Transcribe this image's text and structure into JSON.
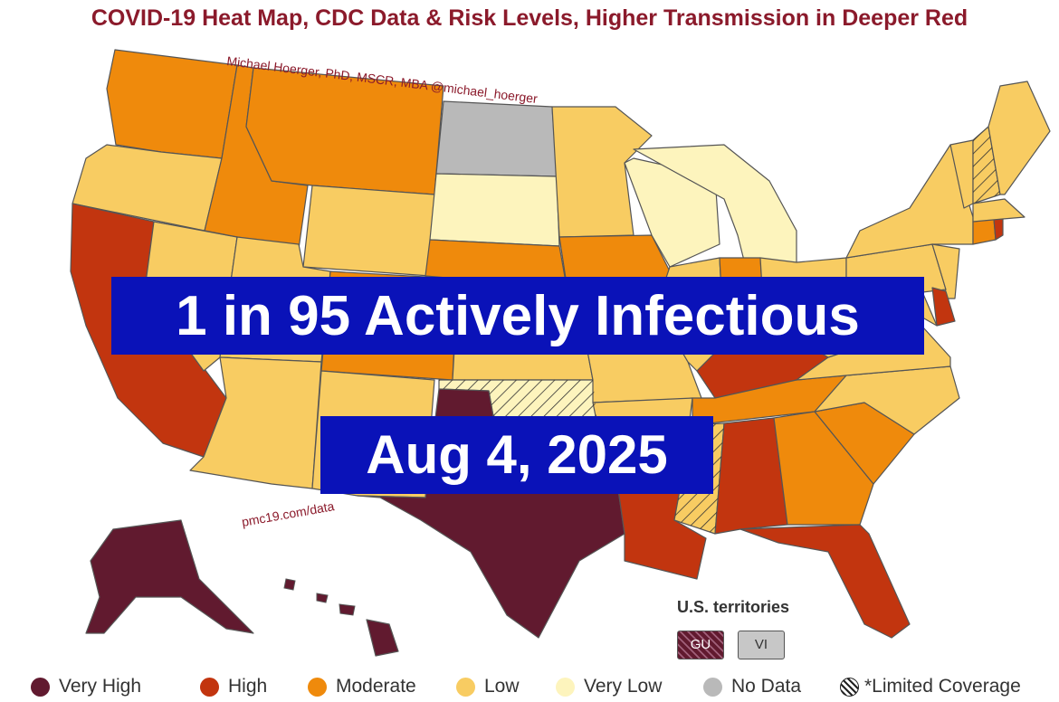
{
  "title": "COVID-19 Heat Map, CDC Data & Risk Levels, Higher Transmission in Deeper Red",
  "attribution": "Michael Hoerger, PhD, MSCR, MBA  @michael_hoerger",
  "source_url": "pmc19.com/data",
  "headline": "1 in 95 Actively Infectious",
  "date": "Aug 4, 2025",
  "colors": {
    "very_high": "#611a2f",
    "high": "#c2350f",
    "moderate": "#ef8a0c",
    "low": "#f8cc62",
    "very_low": "#fdf4bd",
    "no_data": "#b9b9b9",
    "title": "#8b1a2b",
    "banner": "#0a12b8"
  },
  "territories": {
    "title": "U.S. territories",
    "items": [
      {
        "code": "GU",
        "level": "very_high",
        "limited_coverage": true
      },
      {
        "code": "VI",
        "level": "no_data"
      }
    ]
  },
  "legend": [
    {
      "label": "Very High",
      "level": "very_high"
    },
    {
      "label": "High",
      "level": "high"
    },
    {
      "label": "Moderate",
      "level": "moderate"
    },
    {
      "label": "Low",
      "level": "low"
    },
    {
      "label": "Very Low",
      "level": "very_low"
    },
    {
      "label": "No Data",
      "level": "no_data"
    },
    {
      "label": "*Limited Coverage",
      "level": "hatched"
    }
  ],
  "states": [
    {
      "id": "WA",
      "level": "moderate"
    },
    {
      "id": "OR",
      "level": "low"
    },
    {
      "id": "CA",
      "level": "high"
    },
    {
      "id": "NV",
      "level": "low"
    },
    {
      "id": "ID",
      "level": "moderate"
    },
    {
      "id": "MT",
      "level": "moderate"
    },
    {
      "id": "WY",
      "level": "low"
    },
    {
      "id": "UT",
      "level": "low"
    },
    {
      "id": "AZ",
      "level": "low"
    },
    {
      "id": "CO",
      "level": "moderate"
    },
    {
      "id": "NM",
      "level": "low"
    },
    {
      "id": "ND",
      "level": "no_data"
    },
    {
      "id": "SD",
      "level": "very_low"
    },
    {
      "id": "NE",
      "level": "moderate"
    },
    {
      "id": "KS",
      "level": "low"
    },
    {
      "id": "OK",
      "level": "very_low",
      "limited_coverage": true
    },
    {
      "id": "TX",
      "level": "very_high"
    },
    {
      "id": "MN",
      "level": "low"
    },
    {
      "id": "IA",
      "level": "moderate"
    },
    {
      "id": "MO",
      "level": "low"
    },
    {
      "id": "AR",
      "level": "low"
    },
    {
      "id": "LA",
      "level": "high"
    },
    {
      "id": "WI",
      "level": "very_low"
    },
    {
      "id": "MI",
      "level": "very_low"
    },
    {
      "id": "IL",
      "level": "low"
    },
    {
      "id": "IN",
      "level": "moderate"
    },
    {
      "id": "OH",
      "level": "low"
    },
    {
      "id": "KY",
      "level": "high"
    },
    {
      "id": "TN",
      "level": "moderate"
    },
    {
      "id": "MS",
      "level": "low",
      "limited_coverage": true
    },
    {
      "id": "AL",
      "level": "high"
    },
    {
      "id": "GA",
      "level": "moderate"
    },
    {
      "id": "FL",
      "level": "high"
    },
    {
      "id": "SC",
      "level": "moderate"
    },
    {
      "id": "NC",
      "level": "low"
    },
    {
      "id": "VA",
      "level": "low"
    },
    {
      "id": "WV",
      "level": "low"
    },
    {
      "id": "PA",
      "level": "low"
    },
    {
      "id": "NY",
      "level": "low"
    },
    {
      "id": "NJ",
      "level": "low"
    },
    {
      "id": "DE",
      "level": "high"
    },
    {
      "id": "MD",
      "level": "low"
    },
    {
      "id": "CT",
      "level": "moderate"
    },
    {
      "id": "RI",
      "level": "high"
    },
    {
      "id": "MA",
      "level": "low"
    },
    {
      "id": "VT",
      "level": "low"
    },
    {
      "id": "NH",
      "level": "low",
      "limited_coverage": true
    },
    {
      "id": "ME",
      "level": "low"
    },
    {
      "id": "AK",
      "level": "very_high"
    },
    {
      "id": "HI",
      "level": "very_high"
    }
  ]
}
